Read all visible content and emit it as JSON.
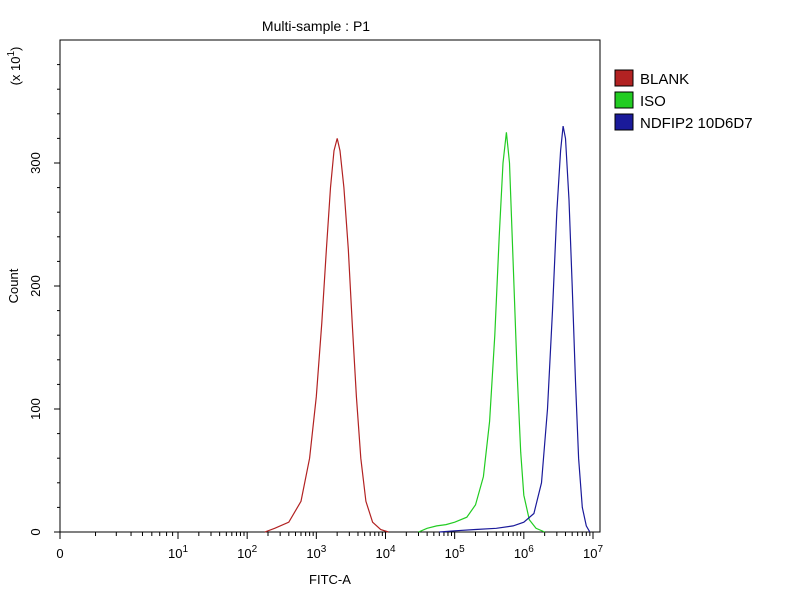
{
  "chart_data": {
    "type": "line",
    "title": "Multi-sample : P1",
    "xlabel": "FITC-A",
    "ylabel": "Count",
    "y_multiplier": "(x 10",
    "y_multiplier_exp": "1",
    "y_multiplier_close": ")",
    "x_scale": "biexponential (log)",
    "xlim": [
      0,
      10000000
    ],
    "ylim": [
      0,
      400
    ],
    "x_ticks": [
      {
        "label": "0",
        "value": 0
      },
      {
        "label": "10",
        "exp": "1",
        "value": 10
      },
      {
        "label": "10",
        "exp": "2",
        "value": 100
      },
      {
        "label": "10",
        "exp": "3",
        "value": 1000
      },
      {
        "label": "10",
        "exp": "4",
        "value": 10000
      },
      {
        "label": "10",
        "exp": "5",
        "value": 100000
      },
      {
        "label": "10",
        "exp": "6",
        "value": 1000000
      },
      {
        "label": "10",
        "exp": "7",
        "value": 10000000
      }
    ],
    "y_ticks": [
      {
        "label": "0",
        "value": 0
      },
      {
        "label": "100",
        "value": 100
      },
      {
        "label": "200",
        "value": 200
      },
      {
        "label": "300",
        "value": 300
      }
    ],
    "legend_position": "right",
    "grid": false,
    "series": [
      {
        "name": "BLANK",
        "color": "#b22222",
        "points": [
          [
            180,
            0
          ],
          [
            250,
            3
          ],
          [
            400,
            8
          ],
          [
            600,
            25
          ],
          [
            800,
            60
          ],
          [
            1000,
            110
          ],
          [
            1200,
            170
          ],
          [
            1400,
            230
          ],
          [
            1600,
            280
          ],
          [
            1800,
            310
          ],
          [
            2000,
            320
          ],
          [
            2200,
            310
          ],
          [
            2500,
            280
          ],
          [
            2900,
            230
          ],
          [
            3300,
            170
          ],
          [
            3800,
            110
          ],
          [
            4400,
            60
          ],
          [
            5200,
            25
          ],
          [
            6500,
            8
          ],
          [
            8500,
            2
          ],
          [
            11000,
            0
          ]
        ]
      },
      {
        "name": "ISO",
        "color": "#22cc22",
        "points": [
          [
            30000,
            0
          ],
          [
            40000,
            3
          ],
          [
            55000,
            5
          ],
          [
            75000,
            6
          ],
          [
            100000,
            8
          ],
          [
            150000,
            12
          ],
          [
            200000,
            22
          ],
          [
            260000,
            45
          ],
          [
            320000,
            90
          ],
          [
            380000,
            160
          ],
          [
            440000,
            240
          ],
          [
            500000,
            300
          ],
          [
            560000,
            325
          ],
          [
            620000,
            300
          ],
          [
            700000,
            220
          ],
          [
            800000,
            130
          ],
          [
            900000,
            65
          ],
          [
            1000000,
            30
          ],
          [
            1200000,
            10
          ],
          [
            1500000,
            3
          ],
          [
            2000000,
            0
          ]
        ]
      },
      {
        "name": "NDFIP2 10D6D7",
        "color": "#1a1a9a",
        "points": [
          [
            60000,
            0
          ],
          [
            100000,
            1
          ],
          [
            200000,
            2
          ],
          [
            400000,
            3
          ],
          [
            700000,
            5
          ],
          [
            1000000,
            8
          ],
          [
            1400000,
            15
          ],
          [
            1800000,
            40
          ],
          [
            2200000,
            100
          ],
          [
            2600000,
            180
          ],
          [
            3000000,
            260
          ],
          [
            3400000,
            310
          ],
          [
            3700000,
            330
          ],
          [
            4000000,
            320
          ],
          [
            4500000,
            270
          ],
          [
            5000000,
            200
          ],
          [
            5600000,
            120
          ],
          [
            6200000,
            60
          ],
          [
            7000000,
            20
          ],
          [
            8000000,
            5
          ],
          [
            9000000,
            0
          ]
        ]
      }
    ]
  }
}
